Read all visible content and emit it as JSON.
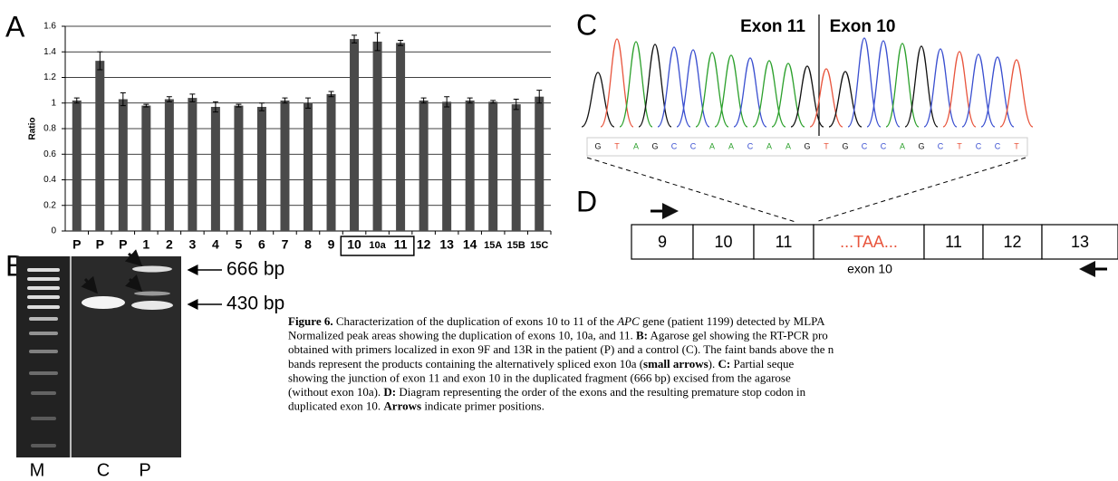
{
  "chart_data": {
    "type": "bar",
    "y_label": "Ratio",
    "categories": [
      "P",
      "P",
      "P",
      "1",
      "2",
      "3",
      "4",
      "5",
      "6",
      "7",
      "8",
      "9",
      "10",
      "10a",
      "11",
      "12",
      "13",
      "14",
      "15A",
      "15B",
      "15C"
    ],
    "values": [
      1.02,
      1.33,
      1.03,
      0.98,
      1.03,
      1.04,
      0.97,
      0.98,
      0.97,
      1.02,
      1.0,
      1.07,
      1.5,
      1.48,
      1.47,
      1.02,
      1.01,
      1.02,
      1.01,
      0.99,
      1.05
    ],
    "errors": [
      0.02,
      0.07,
      0.05,
      0.01,
      0.02,
      0.03,
      0.04,
      0.01,
      0.03,
      0.02,
      0.04,
      0.02,
      0.03,
      0.07,
      0.02,
      0.02,
      0.04,
      0.02,
      0.01,
      0.04,
      0.05
    ],
    "color": "#4a4a4a",
    "ylim": [
      0,
      1.6
    ],
    "yticks": [
      0,
      0.2,
      0.4,
      0.6,
      0.8,
      1,
      1.2,
      1.4,
      1.6
    ],
    "grid": true
  },
  "panels": {
    "a": "A",
    "b": "B",
    "c": "C",
    "d": "D"
  },
  "gel": {
    "lanes": [
      "M",
      "C",
      "P"
    ],
    "sizes": [
      "666 bp",
      "430 bp"
    ]
  },
  "chromatogram": {
    "exons": [
      "Exon 11",
      "Exon 10"
    ],
    "bases": [
      "G",
      "T",
      "A",
      "G",
      "C",
      "C",
      "A",
      "A",
      "C",
      "A",
      "A",
      "G",
      "T",
      "G",
      "C",
      "C",
      "A",
      "G",
      "C",
      "T",
      "C",
      "C",
      "T"
    ]
  },
  "diagram": {
    "boxes": [
      "9",
      "10",
      "11",
      "...TAA...",
      "11",
      "12",
      "13"
    ],
    "label": "exon 10"
  },
  "caption": {
    "lines": [
      [
        {
          "text": "Figure 6.",
          "style": "bold"
        },
        {
          "text": " Characterization of the duplication of exons 10 to 11 of the ",
          "style": "normal"
        },
        {
          "text": "APC",
          "style": "italic"
        },
        {
          "text": " gene (patient 1199) detected by MLPA",
          "style": "normal"
        }
      ],
      [
        {
          "text": "Normalized peak areas showing the duplication of exons 10, 10a, and 11. ",
          "style": "normal"
        },
        {
          "text": "B:",
          "style": "bold"
        },
        {
          "text": " Agarose gel showing the RT-PCR pro",
          "style": "normal"
        }
      ],
      [
        {
          "text": "obtained with primers localized in exon 9F and 13R in the patient (P) and a control (C). The faint bands above the n",
          "style": "normal"
        }
      ],
      [
        {
          "text": "bands represent the products containing the alternatively spliced exon 10a (",
          "style": "normal"
        },
        {
          "text": "small arrows",
          "style": "bold"
        },
        {
          "text": "). ",
          "style": "normal"
        },
        {
          "text": "C:",
          "style": "bold"
        },
        {
          "text": " Partial seque",
          "style": "normal"
        }
      ],
      [
        {
          "text": "showing the junction of exon 11 and exon 10 in the duplicated fragment (666 bp) excised from the agarose",
          "style": "normal"
        }
      ],
      [
        {
          "text": "(without exon 10a). ",
          "style": "normal"
        },
        {
          "text": "D:",
          "style": "bold"
        },
        {
          "text": " Diagram representing the order of the exons and the resulting premature stop codon in",
          "style": "normal"
        }
      ],
      [
        {
          "text": "duplicated exon 10. ",
          "style": "normal"
        },
        {
          "text": "Arrows",
          "style": "bold"
        },
        {
          "text": " indicate primer positions.",
          "style": "normal"
        }
      ]
    ]
  }
}
